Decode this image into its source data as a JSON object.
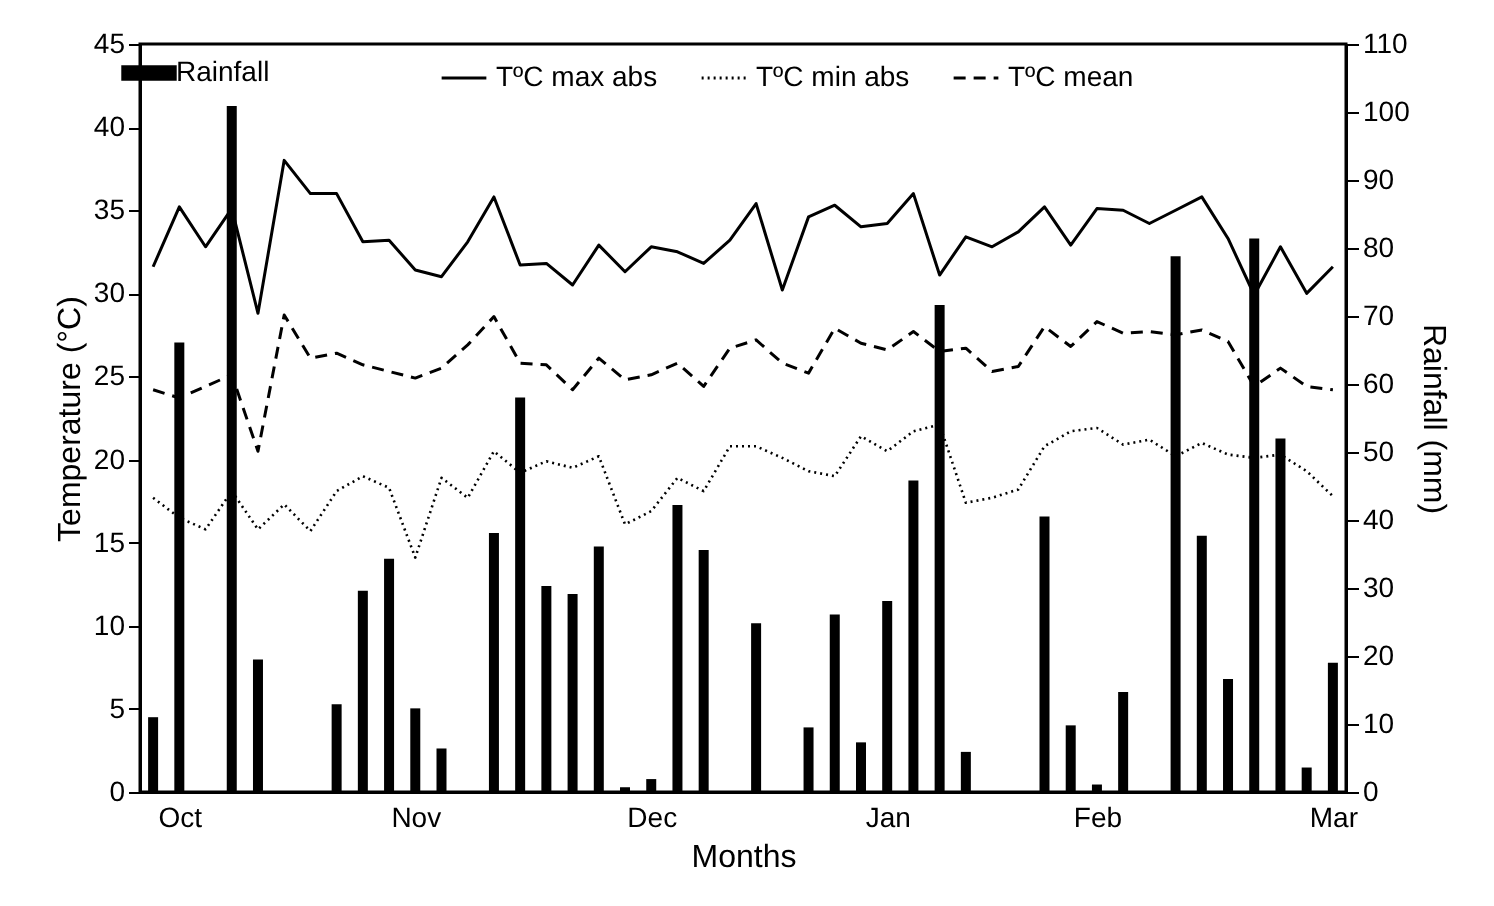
{
  "chart_data": {
    "type": "line",
    "xlabel": "Months",
    "ylabel": "Temperature (°C)",
    "y2label": "Rainfall (mm)",
    "categories": [
      null,
      "Oct",
      null,
      null,
      null,
      null,
      null,
      null,
      null,
      null,
      "Nov",
      null,
      null,
      null,
      null,
      null,
      null,
      null,
      null,
      "Dec",
      null,
      null,
      null,
      null,
      null,
      null,
      null,
      null,
      "Jan",
      null,
      null,
      null,
      null,
      null,
      null,
      null,
      "Feb",
      null,
      null,
      null,
      null,
      null,
      null,
      null,
      null,
      "Mar"
    ],
    "ylim": [
      0,
      45
    ],
    "yticks": [
      0,
      5,
      10,
      15,
      20,
      25,
      30,
      35,
      40,
      45
    ],
    "y2lim": [
      0,
      110
    ],
    "y2ticks": [
      0,
      10,
      20,
      30,
      40,
      50,
      60,
      70,
      80,
      90,
      100,
      110
    ],
    "legend": "top",
    "series": [
      {
        "name": "Rainfall",
        "type": "bar",
        "axis": "y2",
        "color": "#000000",
        "values": [
          11.0,
          66.1,
          null,
          100.9,
          19.5,
          null,
          null,
          12.9,
          29.6,
          34.3,
          12.3,
          6.4,
          null,
          38.1,
          58.0,
          30.3,
          29.1,
          36.1,
          0.7,
          1.9,
          42.2,
          35.6,
          null,
          24.8,
          null,
          9.5,
          26.1,
          7.3,
          28.1,
          45.8,
          71.6,
          5.9,
          null,
          null,
          40.5,
          9.8,
          1.1,
          14.7,
          null,
          78.8,
          37.7,
          16.6,
          81.4,
          52.0,
          3.6,
          19.0
        ]
      },
      {
        "name": "TºC max abs",
        "line_style": "solid",
        "color": "#000000",
        "values": [
          31.6,
          35.2,
          32.8,
          35.1,
          28.8,
          38.0,
          36.0,
          36.0,
          33.1,
          33.2,
          31.4,
          31.0,
          33.1,
          35.8,
          31.7,
          31.8,
          30.5,
          32.9,
          31.3,
          32.8,
          32.5,
          31.8,
          33.2,
          35.4,
          30.2,
          34.6,
          35.3,
          34.0,
          34.2,
          36.0,
          31.1,
          33.4,
          32.8,
          33.7,
          35.2,
          32.9,
          35.1,
          35.0,
          34.2,
          35.0,
          35.8,
          33.3,
          29.9,
          32.8,
          30.0,
          31.6
        ]
      },
      {
        "name": "TºC min abs",
        "line_style": "dotted",
        "color": "#000000",
        "values": [
          17.7,
          16.5,
          15.8,
          18.1,
          15.8,
          17.3,
          15.7,
          18.1,
          19.0,
          18.3,
          14.1,
          18.9,
          17.7,
          20.5,
          19.2,
          19.9,
          19.5,
          20.2,
          16.1,
          16.9,
          18.9,
          18.1,
          20.8,
          20.8,
          20.1,
          19.3,
          19.0,
          21.4,
          20.5,
          21.7,
          22.1,
          17.4,
          17.7,
          18.2,
          20.8,
          21.7,
          21.9,
          20.9,
          21.2,
          20.2,
          21.0,
          20.3,
          20.1,
          20.3,
          19.3,
          17.8
        ]
      },
      {
        "name": "TºC mean",
        "line_style": "dashed",
        "color": "#000000",
        "values": [
          24.2,
          23.7,
          24.4,
          25.1,
          20.5,
          28.7,
          26.1,
          26.4,
          25.7,
          25.3,
          24.9,
          25.5,
          26.9,
          28.6,
          25.8,
          25.7,
          24.2,
          26.1,
          24.8,
          25.1,
          25.8,
          24.4,
          26.7,
          27.2,
          25.8,
          25.2,
          27.9,
          27.0,
          26.6,
          27.7,
          26.5,
          26.7,
          25.3,
          25.6,
          28.0,
          26.8,
          28.3,
          27.6,
          27.7,
          27.5,
          27.8,
          27.1,
          24.4,
          25.5,
          24.4,
          24.2
        ]
      }
    ]
  }
}
